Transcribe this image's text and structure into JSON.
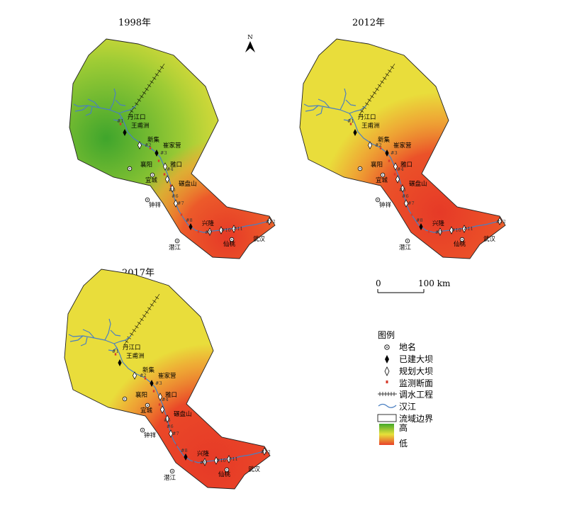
{
  "maps": [
    {
      "key": "m1998",
      "year": "1998年",
      "variant": 0
    },
    {
      "key": "m2012",
      "year": "2012年",
      "variant": 1
    },
    {
      "key": "m2017",
      "year": "2017年",
      "variant": 2
    }
  ],
  "places": [
    "丹江口",
    "王甫洲",
    "新集",
    "崔家营",
    "雅口",
    "襄阳",
    "宜城",
    "碾盘山",
    "钟祥",
    "兴隆",
    "潜江",
    "仙桃",
    "武汉"
  ],
  "sections": [
    "#1",
    "#2",
    "#3",
    "#4",
    "#5",
    "#6",
    "#7",
    "#8",
    "#9",
    "#10",
    "#11",
    "#12"
  ],
  "north": "N",
  "scale": {
    "start": "0",
    "end": "100 km"
  },
  "legend": {
    "title": "图例",
    "items": [
      "地名",
      "已建大坝",
      "规划大坝",
      "监测断面",
      "调水工程",
      "汉江",
      "流域边界"
    ],
    "gradient_high": "高",
    "gradient_low": "低"
  },
  "colors": {
    "high": "#43a82a",
    "mid": "#e7e13a",
    "low": "#e9402a",
    "river": "#4a7fc1"
  }
}
